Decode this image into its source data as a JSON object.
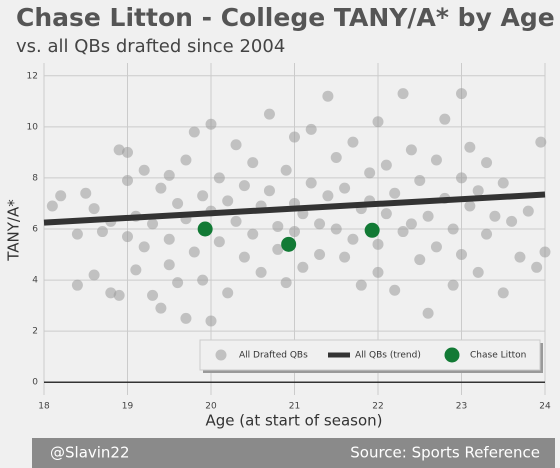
{
  "chart_data": {
    "type": "scatter",
    "title": "Chase Litton - College TANY/A* by Age",
    "subtitle": "vs. all QBs drafted since 2004",
    "x_label": "Age (at start of season)",
    "y_label": "TANY/A*",
    "xlim": [
      18,
      24
    ],
    "ylim": [
      -0.5,
      12.5
    ],
    "xticks": [
      18,
      19,
      20,
      21,
      22,
      23,
      24
    ],
    "yticks": [
      0,
      2,
      4,
      6,
      8,
      10,
      12
    ],
    "grid": true,
    "legend": "lower right",
    "series": [
      {
        "name": "All Drafted QBs",
        "type": "scatter",
        "color": "#9a9a9a",
        "x": [
          18.1,
          18.2,
          18.4,
          18.4,
          18.5,
          18.6,
          18.6,
          18.7,
          18.8,
          18.8,
          18.9,
          18.9,
          19.0,
          19.0,
          19.0,
          19.1,
          19.1,
          19.2,
          19.2,
          19.3,
          19.3,
          19.4,
          19.4,
          19.5,
          19.5,
          19.5,
          19.6,
          19.6,
          19.7,
          19.7,
          19.7,
          19.8,
          19.8,
          19.9,
          19.9,
          20.0,
          20.0,
          20.0,
          20.1,
          20.1,
          20.2,
          20.2,
          20.3,
          20.3,
          20.4,
          20.4,
          20.5,
          20.5,
          20.6,
          20.6,
          20.7,
          20.7,
          20.8,
          20.8,
          20.9,
          20.9,
          21.0,
          21.0,
          21.0,
          21.1,
          21.1,
          21.2,
          21.2,
          21.3,
          21.3,
          21.4,
          21.4,
          21.5,
          21.5,
          21.6,
          21.6,
          21.7,
          21.7,
          21.8,
          21.8,
          21.9,
          21.9,
          22.0,
          22.0,
          22.0,
          22.1,
          22.1,
          22.2,
          22.2,
          22.3,
          22.3,
          22.4,
          22.4,
          22.5,
          22.5,
          22.6,
          22.6,
          22.7,
          22.7,
          22.8,
          22.8,
          22.9,
          22.9,
          23.0,
          23.0,
          23.0,
          23.1,
          23.1,
          23.2,
          23.2,
          23.3,
          23.3,
          23.4,
          23.5,
          23.5,
          23.6,
          23.7,
          23.8,
          23.95,
          23.9,
          24.0
        ],
        "values": [
          6.9,
          7.3,
          5.8,
          3.8,
          7.4,
          6.8,
          4.2,
          5.9,
          3.5,
          6.3,
          9.1,
          3.4,
          9.0,
          5.7,
          7.9,
          6.5,
          4.4,
          8.3,
          5.3,
          3.4,
          6.2,
          7.6,
          2.9,
          5.6,
          8.1,
          4.6,
          7.0,
          3.9,
          2.5,
          6.4,
          8.7,
          5.1,
          9.8,
          7.3,
          4.0,
          2.4,
          6.7,
          10.1,
          5.5,
          8.0,
          3.5,
          7.1,
          6.3,
          9.3,
          4.9,
          7.7,
          5.8,
          8.6,
          6.9,
          4.3,
          7.5,
          10.5,
          5.2,
          6.1,
          8.3,
          3.9,
          7.0,
          9.6,
          5.9,
          6.6,
          4.5,
          7.8,
          9.9,
          6.2,
          5.0,
          11.2,
          7.3,
          8.8,
          6.0,
          4.9,
          7.6,
          9.4,
          5.6,
          6.8,
          3.8,
          8.2,
          7.1,
          10.2,
          5.4,
          4.3,
          6.6,
          8.5,
          3.6,
          7.4,
          11.3,
          5.9,
          9.1,
          6.2,
          4.8,
          7.9,
          2.7,
          6.5,
          8.7,
          5.3,
          10.3,
          7.2,
          3.8,
          6.0,
          11.3,
          8.0,
          5.0,
          6.9,
          9.2,
          4.3,
          7.5,
          8.6,
          5.8,
          6.5,
          3.5,
          7.8,
          6.3,
          4.9,
          6.7,
          9.4,
          4.5,
          5.1
        ]
      },
      {
        "name": "All QBs (trend)",
        "type": "line",
        "color": "#333333",
        "x": [
          18,
          24
        ],
        "values": [
          6.25,
          7.35
        ]
      },
      {
        "name": "Chase Litton",
        "type": "scatter",
        "color": "#127a35",
        "x": [
          19.93,
          20.93,
          21.93
        ],
        "values": [
          6.0,
          5.4,
          5.95
        ]
      }
    ]
  },
  "footer": {
    "left": "@Slavin22",
    "right": "Source: Sports Reference"
  }
}
